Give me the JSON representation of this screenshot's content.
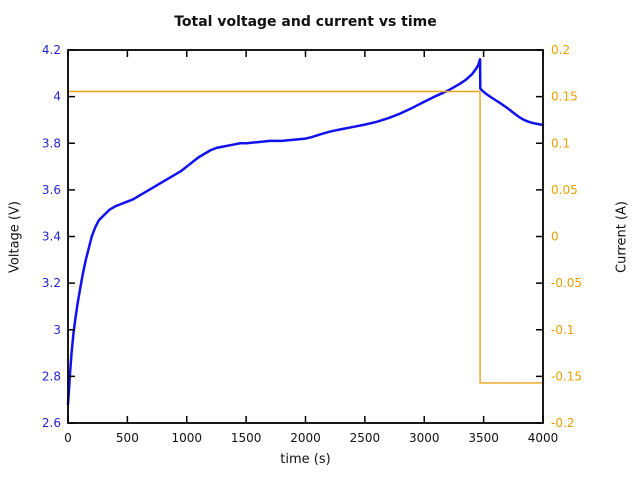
{
  "figure": {
    "title": "Total voltage and current vs time",
    "xlabel": "time (s)",
    "ylabel_left": "Voltage (V)",
    "ylabel_right": "Current (A)"
  },
  "colors": {
    "background": "#ffffff",
    "axis": "#000000",
    "title_text": "#111111",
    "voltage_line": "#1111ee",
    "current_line": "#e8a21c",
    "voltage_tick_labels": "#2424cd",
    "current_tick_labels": "#e8a000",
    "x_tick_labels": "#111111"
  },
  "chart_data": {
    "type": "line",
    "title": "Total voltage and current vs time",
    "xlabel": "time (s)",
    "y_left_label": "Voltage (V)",
    "y_right_label": "Current (A)",
    "x_range": [
      0,
      4000
    ],
    "y_left_range": [
      2.6,
      4.2
    ],
    "y_right_range": [
      -0.2,
      0.2
    ],
    "x_ticks": [
      0,
      500,
      1000,
      1500,
      2000,
      2500,
      3000,
      3500,
      4000
    ],
    "x_tick_labels": [
      "0",
      "500",
      "1000",
      "1500",
      "2000",
      "2500",
      "3000",
      "3500",
      "4000"
    ],
    "y_left_ticks": [
      2.6,
      2.8,
      3.0,
      3.2,
      3.4,
      3.6,
      3.8,
      4.0,
      4.2
    ],
    "y_left_tick_labels": [
      "2.6",
      "2.8",
      "3",
      "3.2",
      "3.4",
      "3.6",
      "3.8",
      "4",
      "4.2"
    ],
    "y_right_ticks": [
      -0.2,
      -0.15,
      -0.1,
      -0.05,
      0,
      0.05,
      0.1,
      0.15,
      0.2
    ],
    "y_right_tick_labels": [
      "-0.2",
      "-0.15",
      "-0.1",
      "-0.05",
      "0",
      "0.05",
      "0.1",
      "0.15",
      "0.2"
    ],
    "grid": false,
    "legend": "none",
    "ticks_mirrored_inward": true,
    "series": [
      {
        "name": "Total voltage",
        "axis": "left",
        "color": "#1111ee",
        "stroke_width": 2.5,
        "points": [
          [
            0,
            2.68
          ],
          [
            8,
            2.74
          ],
          [
            18,
            2.82
          ],
          [
            30,
            2.9
          ],
          [
            45,
            2.98
          ],
          [
            60,
            3.04
          ],
          [
            80,
            3.11
          ],
          [
            100,
            3.17
          ],
          [
            125,
            3.24
          ],
          [
            150,
            3.3
          ],
          [
            175,
            3.35
          ],
          [
            200,
            3.4
          ],
          [
            230,
            3.44
          ],
          [
            260,
            3.47
          ],
          [
            300,
            3.49
          ],
          [
            350,
            3.515
          ],
          [
            400,
            3.53
          ],
          [
            450,
            3.54
          ],
          [
            500,
            3.55
          ],
          [
            550,
            3.56
          ],
          [
            600,
            3.575
          ],
          [
            650,
            3.59
          ],
          [
            700,
            3.605
          ],
          [
            750,
            3.62
          ],
          [
            800,
            3.635
          ],
          [
            850,
            3.65
          ],
          [
            900,
            3.665
          ],
          [
            950,
            3.68
          ],
          [
            1000,
            3.7
          ],
          [
            1050,
            3.72
          ],
          [
            1100,
            3.74
          ],
          [
            1150,
            3.755
          ],
          [
            1200,
            3.77
          ],
          [
            1250,
            3.78
          ],
          [
            1300,
            3.785
          ],
          [
            1350,
            3.79
          ],
          [
            1400,
            3.795
          ],
          [
            1450,
            3.8
          ],
          [
            1500,
            3.8
          ],
          [
            1600,
            3.805
          ],
          [
            1700,
            3.81
          ],
          [
            1800,
            3.81
          ],
          [
            1900,
            3.815
          ],
          [
            2000,
            3.82
          ],
          [
            2050,
            3.826
          ],
          [
            2100,
            3.834
          ],
          [
            2150,
            3.842
          ],
          [
            2200,
            3.849
          ],
          [
            2250,
            3.855
          ],
          [
            2300,
            3.86
          ],
          [
            2400,
            3.87
          ],
          [
            2500,
            3.88
          ],
          [
            2600,
            3.892
          ],
          [
            2700,
            3.908
          ],
          [
            2800,
            3.928
          ],
          [
            2900,
            3.952
          ],
          [
            3000,
            3.978
          ],
          [
            3100,
            4.003
          ],
          [
            3200,
            4.026
          ],
          [
            3300,
            4.055
          ],
          [
            3350,
            4.072
          ],
          [
            3400,
            4.095
          ],
          [
            3430,
            4.115
          ],
          [
            3455,
            4.135
          ],
          [
            3468,
            4.158
          ],
          [
            3470,
            4.16
          ],
          [
            3472,
            4.035
          ],
          [
            3490,
            4.025
          ],
          [
            3520,
            4.012
          ],
          [
            3560,
            3.998
          ],
          [
            3600,
            3.985
          ],
          [
            3640,
            3.972
          ],
          [
            3680,
            3.958
          ],
          [
            3720,
            3.943
          ],
          [
            3760,
            3.927
          ],
          [
            3800,
            3.912
          ],
          [
            3840,
            3.9
          ],
          [
            3880,
            3.892
          ],
          [
            3920,
            3.886
          ],
          [
            3960,
            3.882
          ],
          [
            4000,
            3.879
          ]
        ]
      },
      {
        "name": "Current",
        "axis": "right",
        "color": "#e8a21c",
        "stroke_width": 1.4,
        "points": [
          [
            0,
            0.1555
          ],
          [
            3470,
            0.1555
          ],
          [
            3470,
            -0.157
          ],
          [
            4000,
            -0.157
          ]
        ]
      }
    ]
  }
}
